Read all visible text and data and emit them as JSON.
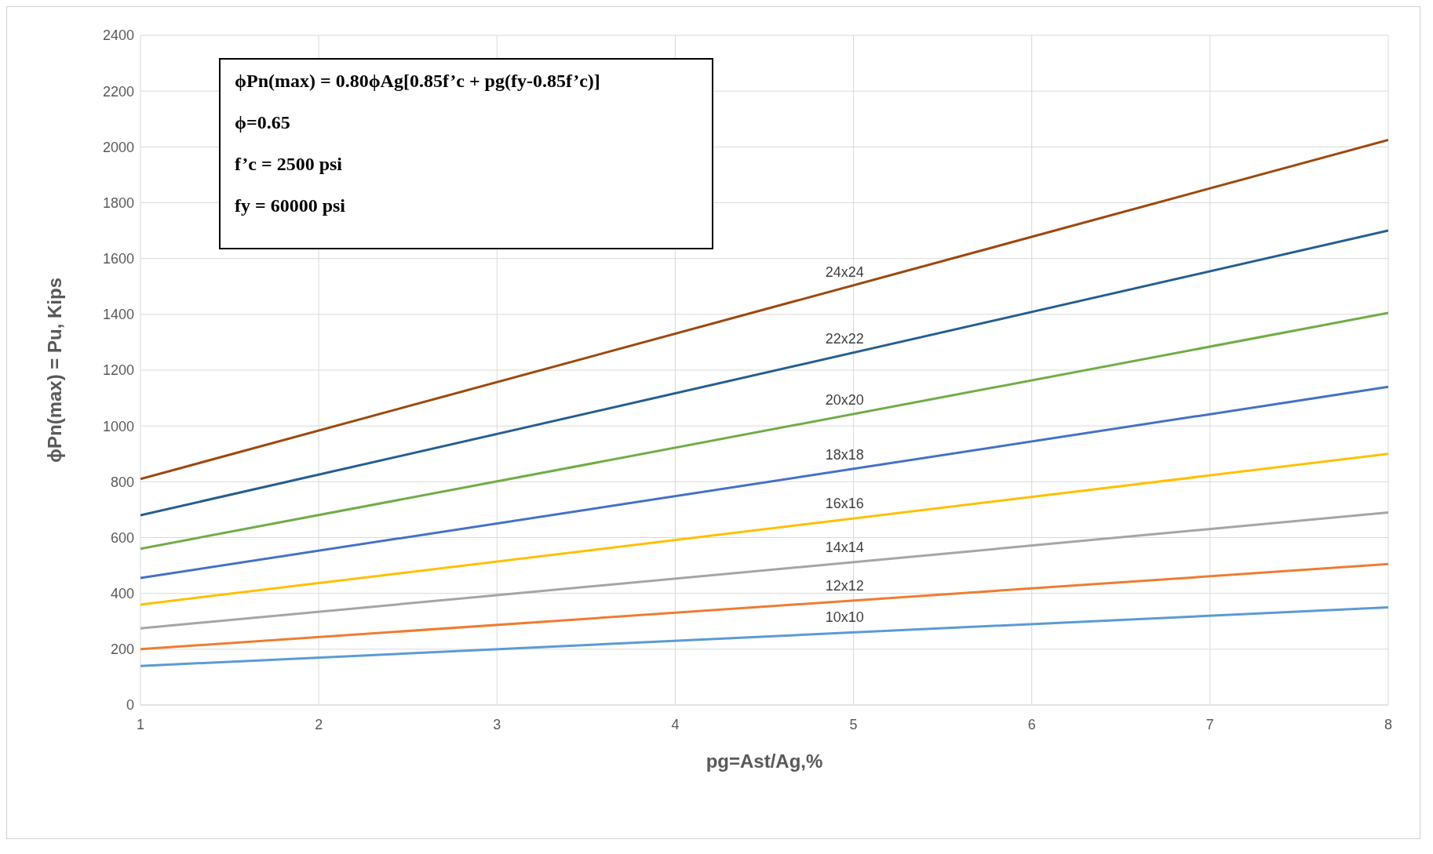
{
  "chart_data": {
    "type": "line",
    "xlabel": "pg=Ast/Ag,%",
    "ylabel": "ϕPn(max) = Pu, Kips",
    "annotations": [
      "ϕPn(max) = 0.80ϕAg[0.85f’c + pg(fy-0.85f’c)]",
      "ϕ=0.65",
      "f’c = 2500 psi",
      "fy = 60000 psi"
    ],
    "x": [
      1,
      8
    ],
    "series": [
      {
        "name": "10x10",
        "color": "#5b9bd5",
        "values": [
          140,
          350
        ]
      },
      {
        "name": "12x12",
        "color": "#ed7d31",
        "values": [
          200,
          505
        ]
      },
      {
        "name": "14x14",
        "color": "#a5a5a5",
        "values": [
          275,
          690
        ]
      },
      {
        "name": "16x16",
        "color": "#ffc000",
        "values": [
          360,
          900
        ]
      },
      {
        "name": "18x18",
        "color": "#4472c4",
        "values": [
          455,
          1140
        ]
      },
      {
        "name": "20x20",
        "color": "#70ad47",
        "values": [
          560,
          1405
        ]
      },
      {
        "name": "22x22",
        "color": "#255e91",
        "values": [
          680,
          1700
        ]
      },
      {
        "name": "24x24",
        "color": "#9e480e",
        "values": [
          810,
          2025
        ]
      }
    ],
    "xlim": [
      1,
      8
    ],
    "xticks": [
      1,
      2,
      3,
      4,
      5,
      6,
      7,
      8
    ],
    "ylim": [
      0,
      2400
    ],
    "yticks": [
      0,
      200,
      400,
      600,
      800,
      1000,
      1200,
      1400,
      1600,
      1800,
      2000,
      2200,
      2400
    ],
    "grid": true,
    "marker": "none",
    "line_style": "solid"
  }
}
